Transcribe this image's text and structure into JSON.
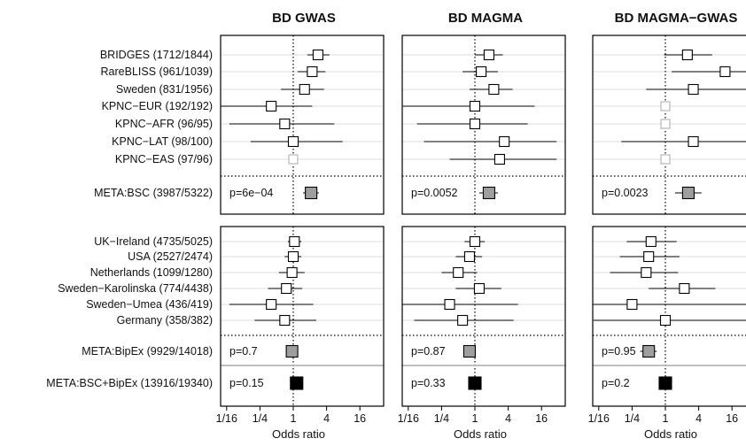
{
  "chart_data": {
    "type": "forest",
    "xlabel": "Odds ratio",
    "x_scale": "log2",
    "xlim": [
      0.04,
      30
    ],
    "x_ticks": [
      0.0625,
      0.25,
      1,
      4,
      16
    ],
    "x_tick_labels": [
      "1/16",
      "1/4",
      "1",
      "4",
      "16"
    ],
    "reference_line": 1,
    "panels_top_labels": [
      "BRIDGES (1712/1844)",
      "RareBLISS (961/1039)",
      "Sweden (831/1956)",
      "KPNC−EUR (192/192)",
      "KPNC−AFR (96/95)",
      "KPNC−LAT (98/100)",
      "KPNC−EAS (97/96)"
    ],
    "meta_bsc_label": "META:BSC (3987/5322)",
    "panels_bottom_labels": [
      "UK−Ireland (4735/5025)",
      "USA (2527/2474)",
      "Netherlands (1099/1280)",
      "Sweden−Karolinska (774/4438)",
      "Sweden−Umea (436/419)",
      "Germany (358/382)"
    ],
    "meta_bipex_label": "META:BipEx (9929/14018)",
    "meta_all_label": "META:BSC+BipEx (13916/19340)",
    "panels": [
      {
        "title": "BD GWAS",
        "top": [
          {
            "or": 2.8,
            "lo": 1.8,
            "hi": 4.5
          },
          {
            "or": 2.2,
            "lo": 1.2,
            "hi": 3.8
          },
          {
            "or": 1.6,
            "lo": 0.6,
            "hi": 3.6
          },
          {
            "or": 0.4,
            "lo": 0.04,
            "hi": 2.2
          },
          {
            "or": 0.7,
            "lo": 0.07,
            "hi": 5.5
          },
          {
            "or": 1.0,
            "lo": 0.17,
            "hi": 7.8
          },
          {
            "or": 1.0,
            "excluded": true
          }
        ],
        "meta_bsc": {
          "or": 2.1,
          "lo": 1.5,
          "hi": 2.9,
          "p": "p=6e−04"
        },
        "bottom": [
          {
            "or": 1.05,
            "lo": 0.8,
            "hi": 1.4
          },
          {
            "or": 1.0,
            "lo": 0.7,
            "hi": 1.4
          },
          {
            "or": 0.95,
            "lo": 0.55,
            "hi": 1.6
          },
          {
            "or": 0.75,
            "lo": 0.35,
            "hi": 1.45
          },
          {
            "or": 0.4,
            "lo": 0.07,
            "hi": 2.3
          },
          {
            "or": 0.7,
            "lo": 0.2,
            "hi": 2.6
          }
        ],
        "meta_bipex": {
          "or": 0.95,
          "lo": 0.8,
          "hi": 1.15,
          "p": "p=0.7"
        },
        "meta_all": {
          "or": 1.15,
          "lo": 0.95,
          "hi": 1.4,
          "p": "p=0.15"
        }
      },
      {
        "title": "BD MAGMA",
        "top": [
          {
            "or": 1.8,
            "lo": 1.0,
            "hi": 3.2
          },
          {
            "or": 1.3,
            "lo": 0.6,
            "hi": 2.6
          },
          {
            "or": 2.2,
            "lo": 0.8,
            "hi": 4.8
          },
          {
            "or": 1.0,
            "lo": 0.05,
            "hi": 12
          },
          {
            "or": 1.0,
            "lo": 0.09,
            "hi": 9.0
          },
          {
            "or": 3.4,
            "lo": 0.12,
            "hi": 30
          },
          {
            "or": 2.8,
            "lo": 0.35,
            "hi": 30
          }
        ],
        "meta_bsc": {
          "or": 1.8,
          "lo": 1.2,
          "hi": 2.6,
          "p": "p=0.0052"
        },
        "bottom": [
          {
            "or": 1.0,
            "lo": 0.65,
            "hi": 1.5
          },
          {
            "or": 0.8,
            "lo": 0.45,
            "hi": 1.35
          },
          {
            "or": 0.5,
            "lo": 0.25,
            "hi": 1.1
          },
          {
            "or": 1.2,
            "lo": 0.45,
            "hi": 3.0
          },
          {
            "or": 0.35,
            "lo": 0.02,
            "hi": 6.0
          },
          {
            "or": 0.6,
            "lo": 0.08,
            "hi": 5.0
          }
        ],
        "meta_bipex": {
          "or": 0.8,
          "lo": 0.65,
          "hi": 1.0,
          "p": "p=0.87"
        },
        "meta_all": {
          "or": 1.0,
          "lo": 0.85,
          "hi": 1.2,
          "p": "p=0.33"
        }
      },
      {
        "title": "BD MAGMA−GWAS",
        "top": [
          {
            "or": 2.5,
            "lo": 0.95,
            "hi": 7.0
          },
          {
            "or": 12,
            "lo": 1.3,
            "hi": 30
          },
          {
            "or": 3.2,
            "lo": 0.45,
            "hi": 30
          },
          {
            "or": 1.0,
            "excluded": true
          },
          {
            "or": 1.0,
            "excluded": true
          },
          {
            "or": 3.2,
            "lo": 0.16,
            "hi": 30
          },
          {
            "or": 1.0,
            "excluded": true
          }
        ],
        "meta_bsc": {
          "or": 2.6,
          "lo": 1.5,
          "hi": 4.5,
          "p": "p=0.0023"
        },
        "bottom": [
          {
            "or": 0.55,
            "lo": 0.2,
            "hi": 1.6
          },
          {
            "or": 0.5,
            "lo": 0.15,
            "hi": 1.8
          },
          {
            "or": 0.45,
            "lo": 0.1,
            "hi": 1.7
          },
          {
            "or": 2.2,
            "lo": 0.5,
            "hi": 8.0
          },
          {
            "or": 0.25,
            "lo": 0.02,
            "hi": 30
          },
          {
            "or": 1.0,
            "lo": 0.05,
            "hi": 30
          }
        ],
        "meta_bipex": {
          "or": 0.5,
          "lo": 0.35,
          "hi": 0.7,
          "p": "p=0.95"
        },
        "meta_all": {
          "or": 1.0,
          "lo": 0.85,
          "hi": 1.2,
          "p": "p=0.2"
        }
      }
    ]
  }
}
